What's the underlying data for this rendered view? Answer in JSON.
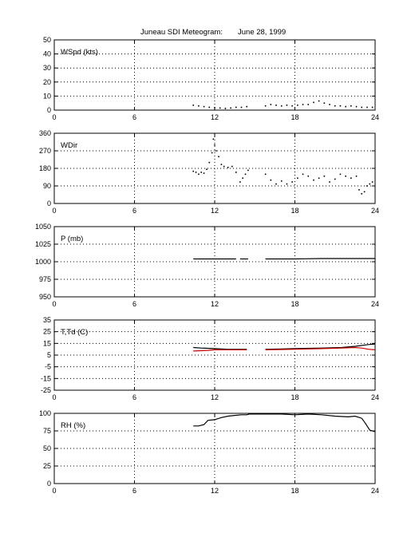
{
  "title": "Juneau SDI Meteogram:",
  "date": "June 28, 1999",
  "colors": {
    "axis": "#000000",
    "grid": "#000000",
    "trace": "#000000",
    "dewpoint": "#cc0000"
  },
  "chart_data": [
    {
      "type": "scatter",
      "ylabel": "WSpd (kts)",
      "xlim": [
        0,
        24
      ],
      "xticks": [
        0,
        6,
        12,
        18,
        24
      ],
      "xtick_labels": [
        "0",
        "6",
        "12",
        "18",
        "24"
      ],
      "ylim": [
        0,
        50
      ],
      "yticks": [
        0,
        10,
        20,
        30,
        40,
        50
      ],
      "ytick_labels": [
        "0",
        "10",
        "20",
        "30",
        "40",
        "50"
      ],
      "grid": true,
      "series": [
        {
          "values": [
            [
              10.4,
              3.5
            ],
            [
              10.8,
              3
            ],
            [
              11.2,
              2.5
            ],
            [
              11.6,
              2
            ],
            [
              12.0,
              1.8
            ],
            [
              12.4,
              1.5
            ],
            [
              12.8,
              1.2
            ],
            [
              13.2,
              1.5
            ],
            [
              13.6,
              2
            ],
            [
              14.0,
              2
            ],
            [
              14.4,
              2.5
            ],
            [
              15.8,
              3
            ],
            [
              16.2,
              4
            ],
            [
              16.6,
              3.5
            ],
            [
              17.0,
              3
            ],
            [
              17.4,
              3.5
            ],
            [
              17.8,
              3
            ],
            [
              18.2,
              3.5
            ],
            [
              18.6,
              4
            ],
            [
              19.0,
              4
            ],
            [
              19.4,
              5.5
            ],
            [
              19.8,
              6.5
            ],
            [
              20.2,
              5
            ],
            [
              20.6,
              4
            ],
            [
              21.0,
              3
            ],
            [
              21.4,
              3
            ],
            [
              21.8,
              2.5
            ],
            [
              22.2,
              3
            ],
            [
              22.6,
              2.5
            ],
            [
              23.0,
              2
            ],
            [
              23.4,
              2
            ],
            [
              23.8,
              2
            ]
          ]
        }
      ]
    },
    {
      "type": "scatter",
      "ylabel": "WDir",
      "xlim": [
        0,
        24
      ],
      "xticks": [
        0,
        6,
        12,
        18,
        24
      ],
      "xtick_labels": [
        "0",
        "6",
        "12",
        "18",
        "24"
      ],
      "ylim": [
        0,
        360
      ],
      "yticks": [
        0,
        90,
        180,
        270,
        360
      ],
      "ytick_labels": [
        "0",
        "90",
        "180",
        "270",
        "360"
      ],
      "grid": true,
      "series": [
        {
          "values": [
            [
              10.4,
              165
            ],
            [
              10.6,
              160
            ],
            [
              10.8,
              150
            ],
            [
              11.0,
              160
            ],
            [
              11.2,
              155
            ],
            [
              11.4,
              175
            ],
            [
              11.6,
              210
            ],
            [
              11.8,
              260
            ],
            [
              11.9,
              330
            ],
            [
              12.0,
              300
            ],
            [
              12.1,
              270
            ],
            [
              12.3,
              240
            ],
            [
              12.5,
              200
            ],
            [
              12.7,
              190
            ],
            [
              13.0,
              185
            ],
            [
              13.3,
              190
            ],
            [
              13.6,
              160
            ],
            [
              13.9,
              110
            ],
            [
              14.1,
              130
            ],
            [
              14.3,
              150
            ],
            [
              14.5,
              170
            ],
            [
              15.8,
              150
            ],
            [
              16.2,
              120
            ],
            [
              16.6,
              100
            ],
            [
              17.0,
              115
            ],
            [
              17.4,
              100
            ],
            [
              17.8,
              110
            ],
            [
              18.2,
              130
            ],
            [
              18.6,
              150
            ],
            [
              19.0,
              140
            ],
            [
              19.4,
              120
            ],
            [
              19.8,
              130
            ],
            [
              20.2,
              140
            ],
            [
              20.6,
              110
            ],
            [
              21.0,
              125
            ],
            [
              21.4,
              150
            ],
            [
              21.8,
              140
            ],
            [
              22.2,
              130
            ],
            [
              22.6,
              140
            ],
            [
              22.8,
              70
            ],
            [
              23.0,
              50
            ],
            [
              23.2,
              60
            ],
            [
              23.4,
              90
            ],
            [
              23.6,
              100
            ],
            [
              23.8,
              110
            ]
          ]
        }
      ]
    },
    {
      "type": "line",
      "ylabel": "P (mb)",
      "xlim": [
        0,
        24
      ],
      "xticks": [
        0,
        6,
        12,
        18,
        24
      ],
      "xtick_labels": [
        "0",
        "6",
        "12",
        "18",
        "24"
      ],
      "ylim": [
        950,
        1050
      ],
      "yticks": [
        950,
        975,
        1000,
        1025,
        1050
      ],
      "ytick_labels": [
        "950",
        "975",
        "1000",
        "1025",
        "1050"
      ],
      "grid": true,
      "series": [
        {
          "values": [
            [
              10.4,
              1004
            ],
            [
              12.0,
              1004
            ],
            [
              13.0,
              1004
            ],
            [
              13.6,
              1004
            ]
          ]
        },
        {
          "values": [
            [
              13.9,
              1004
            ],
            [
              14.5,
              1004
            ]
          ]
        },
        {
          "values": [
            [
              15.8,
              1004
            ],
            [
              18.0,
              1004
            ],
            [
              20.0,
              1004.5
            ],
            [
              22.0,
              1004.5
            ],
            [
              24.0,
              1004.5
            ]
          ]
        }
      ]
    },
    {
      "type": "line",
      "ylabel": "T,Td (C)",
      "xlim": [
        0,
        24
      ],
      "xticks": [
        0,
        6,
        12,
        18,
        24
      ],
      "xtick_labels": [
        "0",
        "6",
        "12",
        "18",
        "24"
      ],
      "ylim": [
        -25,
        35
      ],
      "yticks": [
        -25,
        -15,
        -5,
        5,
        15,
        25,
        35
      ],
      "ytick_labels": [
        "-25",
        "-15",
        "-5",
        "5",
        "15",
        "25",
        "35"
      ],
      "grid": true,
      "series": [
        {
          "color": "black",
          "values": [
            [
              10.4,
              11.5
            ],
            [
              11.0,
              11
            ],
            [
              12.0,
              10.5
            ],
            [
              13.0,
              10
            ],
            [
              14.4,
              10
            ]
          ]
        },
        {
          "color": "black",
          "values": [
            [
              15.8,
              10
            ],
            [
              17.0,
              10.2
            ],
            [
              18.0,
              10.5
            ],
            [
              20.0,
              11
            ],
            [
              21.5,
              11.5
            ],
            [
              22.5,
              12.5
            ],
            [
              23.5,
              14
            ],
            [
              24.0,
              14.5
            ]
          ]
        },
        {
          "color": "red",
          "values": [
            [
              10.4,
              8.5
            ],
            [
              11.5,
              9
            ],
            [
              12.0,
              9.5
            ],
            [
              13.0,
              9.5
            ],
            [
              14.4,
              9.5
            ]
          ]
        },
        {
          "color": "red",
          "values": [
            [
              15.8,
              9.5
            ],
            [
              17.0,
              9.8
            ],
            [
              18.0,
              10
            ],
            [
              20.0,
              10.5
            ],
            [
              21.5,
              11
            ],
            [
              22.5,
              11.5
            ],
            [
              23.0,
              11
            ],
            [
              23.5,
              10
            ],
            [
              24.0,
              9.5
            ]
          ]
        }
      ]
    },
    {
      "type": "line",
      "ylabel": "RH (%)",
      "xlim": [
        0,
        24
      ],
      "xticks": [
        0,
        6,
        12,
        18,
        24
      ],
      "xtick_labels": [
        "0",
        "6",
        "12",
        "18",
        "24"
      ],
      "ylim": [
        0,
        100
      ],
      "yticks": [
        0,
        25,
        50,
        75,
        100
      ],
      "ytick_labels": [
        "0",
        "25",
        "50",
        "75",
        "100"
      ],
      "grid": true,
      "series": [
        {
          "values": [
            [
              10.4,
              82
            ],
            [
              10.8,
              82
            ],
            [
              11.2,
              84
            ],
            [
              11.5,
              90
            ],
            [
              12.0,
              91
            ],
            [
              12.5,
              94
            ],
            [
              13.0,
              96
            ],
            [
              13.5,
              97
            ],
            [
              14.0,
              98
            ],
            [
              14.4,
              98
            ],
            [
              14.6,
              99
            ],
            [
              15.8,
              99
            ],
            [
              17.0,
              99
            ],
            [
              18.0,
              98
            ],
            [
              19.0,
              99
            ],
            [
              20.0,
              98
            ],
            [
              21.0,
              96
            ],
            [
              22.0,
              95
            ],
            [
              22.5,
              96
            ],
            [
              23.0,
              93
            ],
            [
              23.3,
              85
            ],
            [
              23.6,
              76
            ],
            [
              24.0,
              74
            ]
          ]
        }
      ]
    }
  ]
}
